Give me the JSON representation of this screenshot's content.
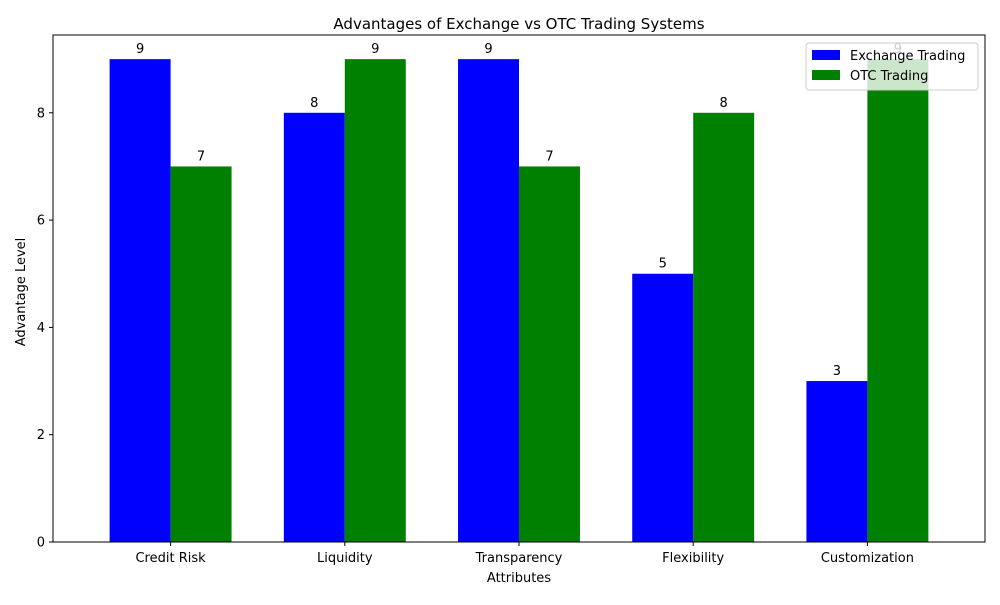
{
  "chart_data": {
    "type": "bar",
    "title": "Advantages of Exchange vs OTC Trading Systems",
    "xlabel": "Attributes",
    "ylabel": "Advantage Level",
    "categories": [
      "Credit Risk",
      "Liquidity",
      "Transparency",
      "Flexibility",
      "Customization"
    ],
    "series": [
      {
        "name": "Exchange Trading",
        "color": "#0000ff",
        "values": [
          9,
          8,
          9,
          5,
          3
        ]
      },
      {
        "name": "OTC Trading",
        "color": "#008000",
        "values": [
          7,
          9,
          7,
          8,
          9
        ]
      }
    ],
    "ylim": [
      0,
      9.45
    ],
    "yticks": [
      0,
      2,
      4,
      6,
      8
    ],
    "legend": "top-right",
    "grid": false
  }
}
